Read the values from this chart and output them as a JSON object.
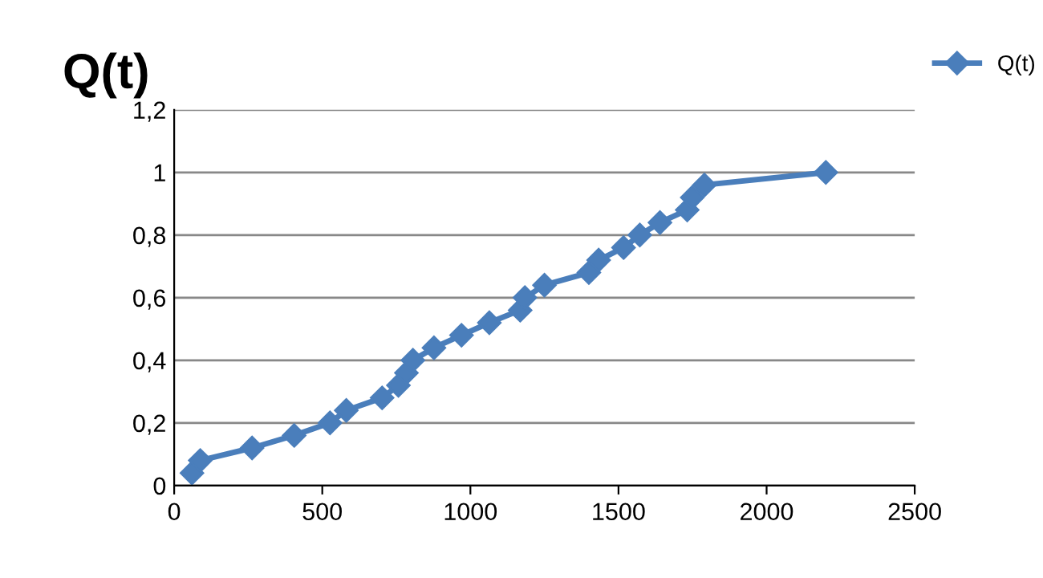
{
  "chart_data": {
    "type": "line",
    "title": "Q(t)",
    "series": [
      {
        "name": "Q(t)",
        "color": "#4a7ebb",
        "x": [
          60,
          88,
          263,
          405,
          526,
          581,
          702,
          757,
          784,
          806,
          877,
          970,
          1064,
          1168,
          1184,
          1250,
          1400,
          1433,
          1517,
          1572,
          1640,
          1732,
          1749,
          1790,
          2200
        ],
        "values": [
          0.04,
          0.08,
          0.12,
          0.16,
          0.2,
          0.24,
          0.28,
          0.32,
          0.36,
          0.4,
          0.44,
          0.48,
          0.52,
          0.56,
          0.6,
          0.64,
          0.68,
          0.72,
          0.76,
          0.8,
          0.84,
          0.88,
          0.92,
          0.96,
          1.0
        ]
      }
    ],
    "xlim": [
      0,
      2500
    ],
    "xticks": [
      0,
      500,
      1000,
      1500,
      2000,
      2500
    ],
    "ylim": [
      0,
      1.2
    ],
    "yticks": [
      0,
      {
        "value": 0.2,
        "label": "0,2"
      },
      {
        "value": 0.4,
        "label": "0,4"
      },
      {
        "value": 0.6,
        "label": "0,6"
      },
      {
        "value": 0.8,
        "label": "0,8"
      },
      1,
      {
        "value": 1.2,
        "label": "1,2"
      }
    ],
    "grid": "y",
    "legend": "top right",
    "marker": "diamond",
    "line_style": "solid"
  }
}
